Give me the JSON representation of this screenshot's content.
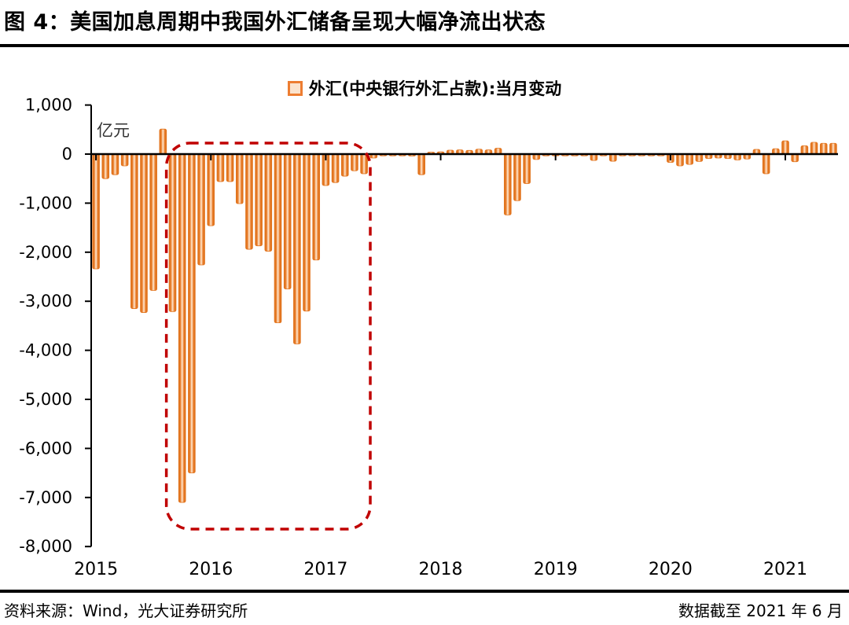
{
  "title": "图 4：美国加息周期中我国外汇储备呈现大幅净流出状态",
  "legend": {
    "label": "外汇(中央银行外汇占款):当月变动"
  },
  "unit_label": "亿元",
  "footer": {
    "source": "资料来源：Wind，光大证券研究所",
    "note": "数据截至 2021 年 6 月"
  },
  "colors": {
    "bar_edge": "#E2751F",
    "bar_mid": "#F4A163",
    "bar_center": "#FBDCBD",
    "highlight": "#C00000",
    "axis": "#000000"
  },
  "chart_data": {
    "type": "bar",
    "title": "外汇(中央银行外汇占款):当月变动",
    "ylabel": "亿元",
    "ylim": [
      -8000,
      1000
    ],
    "ytick_values": [
      1000,
      0,
      -1000,
      -2000,
      -3000,
      -4000,
      -5000,
      -6000,
      -7000,
      -8000
    ],
    "ytick_labels": [
      "1,000",
      "0",
      "-1,000",
      "-2,000",
      "-3,000",
      "-4,000",
      "-5,000",
      "-6,000",
      "-7,000",
      "-8,000"
    ],
    "xtick_labels": [
      "2015",
      "2016",
      "2017",
      "2018",
      "2019",
      "2020",
      "2021"
    ],
    "grid": false,
    "legend_position": "top-center",
    "months": [
      "2015-01",
      "2015-02",
      "2015-03",
      "2015-04",
      "2015-05",
      "2015-06",
      "2015-07",
      "2015-08",
      "2015-09",
      "2015-10",
      "2015-11",
      "2015-12",
      "2016-01",
      "2016-02",
      "2016-03",
      "2016-04",
      "2016-05",
      "2016-06",
      "2016-07",
      "2016-08",
      "2016-09",
      "2016-10",
      "2016-11",
      "2016-12",
      "2017-01",
      "2017-02",
      "2017-03",
      "2017-04",
      "2017-05",
      "2017-06",
      "2017-07",
      "2017-08",
      "2017-09",
      "2017-10",
      "2017-11",
      "2017-12",
      "2018-01",
      "2018-02",
      "2018-03",
      "2018-04",
      "2018-05",
      "2018-06",
      "2018-07",
      "2018-08",
      "2018-09",
      "2018-10",
      "2018-11",
      "2018-12",
      "2019-01",
      "2019-02",
      "2019-03",
      "2019-04",
      "2019-05",
      "2019-06",
      "2019-07",
      "2019-08",
      "2019-09",
      "2019-10",
      "2019-11",
      "2019-12",
      "2020-01",
      "2020-02",
      "2020-03",
      "2020-04",
      "2020-05",
      "2020-06",
      "2020-07",
      "2020-08",
      "2020-09",
      "2020-10",
      "2020-11",
      "2020-12",
      "2021-01",
      "2021-02",
      "2021-03",
      "2021-04",
      "2021-05",
      "2021-06"
    ],
    "values": [
      -2340,
      -500,
      -420,
      -240,
      -3150,
      -3230,
      -2780,
      510,
      -3210,
      -7100,
      -6500,
      -2260,
      -1460,
      -560,
      -560,
      -1010,
      -1940,
      -1870,
      -1980,
      -3440,
      -2750,
      -3870,
      -3200,
      -2160,
      -640,
      -580,
      -450,
      -340,
      -400,
      -80,
      -30,
      -30,
      -30,
      -40,
      -420,
      40,
      45,
      80,
      85,
      75,
      100,
      85,
      120,
      -1240,
      -950,
      -600,
      -110,
      -30,
      -30,
      -30,
      -30,
      -30,
      -130,
      -30,
      -145,
      -30,
      -30,
      -30,
      -30,
      -30,
      -170,
      -240,
      -210,
      -150,
      -90,
      -80,
      -90,
      -120,
      -100,
      95,
      -400,
      110,
      270,
      -155,
      170,
      240,
      220,
      220
    ],
    "highlight_box": {
      "start_index": 8,
      "end_index": 28,
      "style": "dashed",
      "color": "#C00000"
    }
  }
}
